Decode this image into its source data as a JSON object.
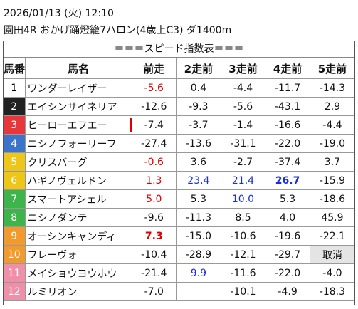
{
  "header": {
    "datetime": "2026/01/13 (火) 12:10",
    "race": "園田4R おかげ踊燈籠7ハロン(4歳上C3) ダ1400m"
  },
  "table": {
    "title": "＝＝＝スピード指数表＝＝＝",
    "columns": [
      "馬番",
      "馬名",
      "前走",
      "2走前",
      "3走前",
      "4走前",
      "5走前"
    ],
    "rows": [
      {
        "no": "1",
        "gate_color": "#ffffff",
        "no_color": "#000000",
        "name": "ワンダーレイザー",
        "cells": [
          {
            "text": "-5.6",
            "color": "#e00000"
          },
          "0.4",
          "-4.4",
          "-11.7",
          "-14.3"
        ]
      },
      {
        "no": "2",
        "gate_color": "#222222",
        "no_color": "#ffffff",
        "name": "エイシンサイネリア",
        "cells": [
          "-12.6",
          "-9.3",
          "-5.6",
          "-43.1",
          "2.9"
        ]
      },
      {
        "no": "3",
        "gate_color": "#e8373a",
        "no_color": "#ffffff",
        "name": "ヒーローエフエー",
        "cells": [
          "-7.4",
          "-3.7",
          "-1.4",
          "-16.6",
          "-4.4"
        ]
      },
      {
        "no": "4",
        "gate_color": "#3b74c9",
        "no_color": "#ffffff",
        "name": "ニシノフォーリーフ",
        "cells": [
          "-27.4",
          "-13.6",
          "-31.1",
          "-22.0",
          "-19.0"
        ]
      },
      {
        "no": "5",
        "gate_color": "#eec617",
        "no_color": "#ffffff",
        "name": "クリスバーグ",
        "cells": [
          {
            "text": "-0.6",
            "color": "#e00000"
          },
          "3.6",
          "-2.7",
          "-37.4",
          "3.7"
        ]
      },
      {
        "no": "6",
        "gate_color": "#eec617",
        "no_color": "#ffffff",
        "name": "ハギノヴェルドン",
        "cells": [
          {
            "text": "1.3",
            "color": "#e00000"
          },
          {
            "text": "23.4",
            "color": "#1a2ee0"
          },
          {
            "text": "21.4",
            "color": "#1a2ee0"
          },
          {
            "text": "26.7",
            "color": "#1a2ee0",
            "bold": true
          },
          "-15.9"
        ]
      },
      {
        "no": "7",
        "gate_color": "#3db54a",
        "no_color": "#ffffff",
        "name": "スマートアシェル",
        "cells": [
          {
            "text": "5.0",
            "color": "#e00000"
          },
          "5.3",
          {
            "text": "10.0",
            "color": "#1a2ee0"
          },
          "5.3",
          "-18.6"
        ]
      },
      {
        "no": "8",
        "gate_color": "#3db54a",
        "no_color": "#ffffff",
        "name": "ニシノダンテ",
        "cells": [
          "-9.6",
          "-11.3",
          "8.5",
          "4.0",
          "45.9"
        ]
      },
      {
        "no": "9",
        "gate_color": "#f39a2c",
        "no_color": "#ffffff",
        "name": "オーシンキャンディ",
        "cells": [
          {
            "text": "7.3",
            "color": "#e00000",
            "bold": true
          },
          "-15.0",
          "-10.6",
          "-19.6",
          "-22.1"
        ]
      },
      {
        "no": "10",
        "gate_color": "#f39a2c",
        "no_color": "#ffffff",
        "name": "フレーヴォ",
        "cells": [
          "-10.4",
          "-28.9",
          "-12.1",
          "-29.7",
          {
            "text": "取消",
            "background": "#e4e4e4"
          }
        ]
      },
      {
        "no": "11",
        "gate_color": "#f08fa8",
        "no_color": "#ffffff",
        "name": "メイショウヨウホウ",
        "cells": [
          "-21.4",
          {
            "text": "9.9",
            "color": "#1a2ee0"
          },
          "-11.6",
          "-22.0",
          "-4.0"
        ]
      },
      {
        "no": "12",
        "gate_color": "#f08fa8",
        "no_color": "#ffffff",
        "name": "ルミリオン",
        "cells": [
          "-7.0",
          null,
          "-10.1",
          "-4.9",
          "-18.3"
        ]
      }
    ]
  }
}
